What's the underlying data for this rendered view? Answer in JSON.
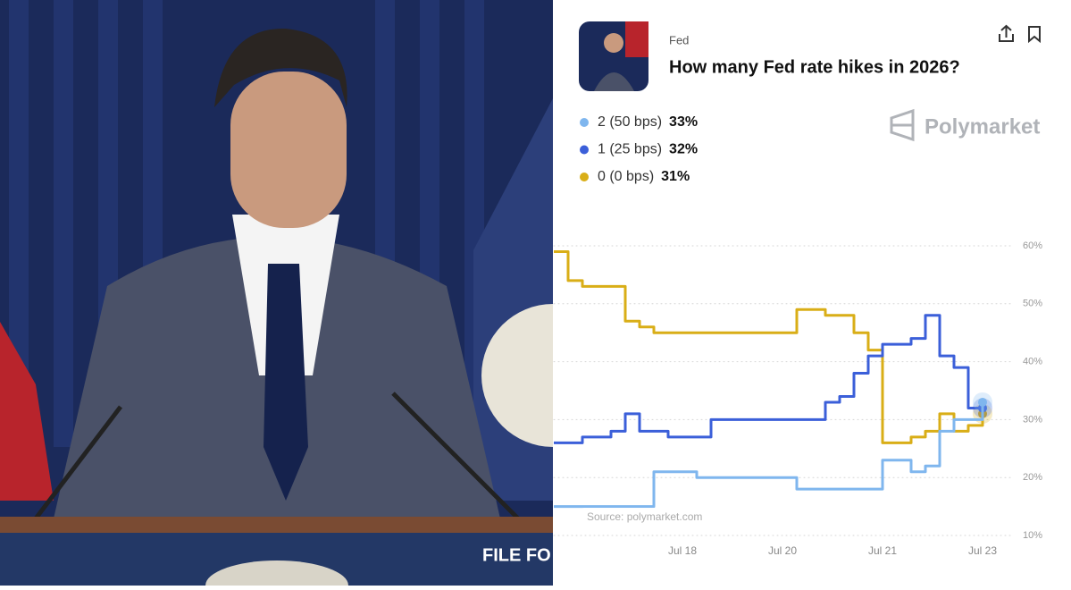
{
  "photo": {
    "text": "FILE FO"
  },
  "chart_data": {
    "type": "line",
    "category": "Fed",
    "title": "How many Fed rate hikes in 2026?",
    "brand": "Polymarket",
    "source": "Source: polymarket.com",
    "categories": [
      null,
      null,
      null,
      null,
      null,
      null,
      null,
      null,
      null,
      "Jul 18",
      null,
      null,
      null,
      null,
      null,
      null,
      "Jul 20",
      null,
      null,
      null,
      null,
      null,
      null,
      "Jul 21",
      null,
      null,
      null,
      null,
      null,
      null,
      "Jul 23"
    ],
    "series": [
      {
        "name": "2 (50 bps)",
        "current_label": "33%",
        "color": "#7fb6ee",
        "values": [
          15,
          15,
          15,
          15,
          15,
          15,
          15,
          21,
          21,
          21,
          20,
          20,
          20,
          20,
          20,
          20,
          20,
          18,
          18,
          18,
          18,
          18,
          18,
          23,
          23,
          21,
          22,
          28,
          30,
          30,
          33
        ]
      },
      {
        "name": "1 (25 bps)",
        "current_label": "32%",
        "color": "#3b5fd9",
        "values": [
          26,
          26,
          27,
          27,
          28,
          31,
          28,
          28,
          27,
          27,
          27,
          30,
          30,
          30,
          30,
          30,
          30,
          30,
          30,
          33,
          34,
          38,
          41,
          43,
          43,
          44,
          48,
          41,
          39,
          32,
          32
        ]
      },
      {
        "name": "0 (0 bps)",
        "current_label": "31%",
        "color": "#d9ae17",
        "values": [
          59,
          54,
          53,
          53,
          53,
          47,
          46,
          45,
          45,
          45,
          45,
          45,
          45,
          45,
          45,
          45,
          45,
          49,
          49,
          48,
          48,
          45,
          42,
          26,
          26,
          27,
          28,
          31,
          28,
          29,
          31
        ]
      }
    ],
    "ylim": [
      10,
      60
    ],
    "yticks": [
      {
        "value": 10,
        "label": "10%"
      },
      {
        "value": 20,
        "label": "20%"
      },
      {
        "value": 30,
        "label": "30%"
      },
      {
        "value": 40,
        "label": "40%"
      },
      {
        "value": 50,
        "label": "50%"
      },
      {
        "value": 60,
        "label": "60%"
      }
    ],
    "grid": true
  }
}
